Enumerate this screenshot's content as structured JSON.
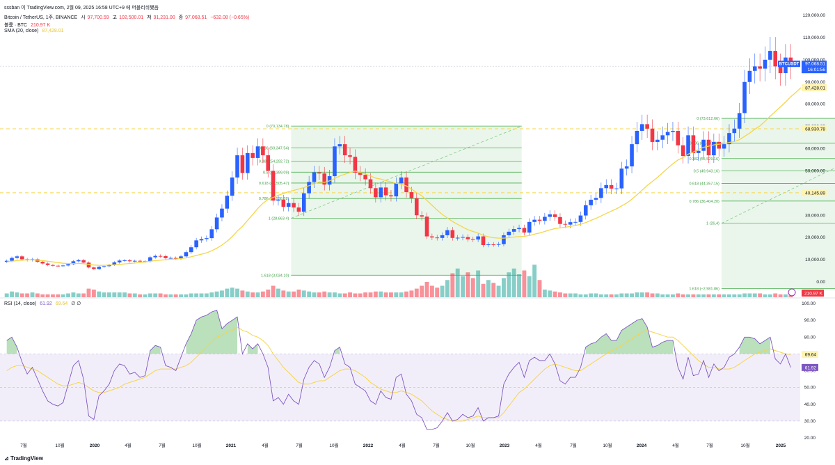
{
  "watermark": "sssban 이 TradingView.com, 2월 09, 2025 16:58 UTC+9 에 퍼블리쉬됐음",
  "symbol_line": "Bitcoin / TetherUS, 1주, BINANCE",
  "ohlc": [
    {
      "label": "시",
      "value": "97,700.59"
    },
    {
      "label": "고",
      "value": "102,500.01"
    },
    {
      "label": "저",
      "value": "91,231.00"
    },
    {
      "label": "종",
      "value": "97,068.51"
    },
    {
      "label": "",
      "value": "−632.08 (−0.65%)"
    }
  ],
  "volume_line": {
    "label": "볼륨 · BTC",
    "value": "210.97 K"
  },
  "sma_line": {
    "label": "SMA (20, close)",
    "value": "87,428.01"
  },
  "rsi_line": {
    "label": "RSI (14, close)",
    "value1": "61.92",
    "value2": "69.64",
    "value3": "∅ ∅"
  },
  "footer_logo": "TradingView",
  "colors": {
    "up": "#26a69a",
    "down": "#f23645",
    "candle_up": "#2962ff",
    "candle_down": "#f23645",
    "sma": "#f5d547",
    "fib": "#4caf50",
    "fib_zone": "#e8f5e9",
    "rsi": "#7e57c2",
    "rsi_band": "#ede7f6",
    "level": "#f5d547"
  },
  "chart_data": [
    {
      "type": "candlestick",
      "title": "Bitcoin / TetherUS, 1주, BINANCE",
      "y_axis_labels": [
        "120,000.00",
        "110,000.00",
        "100,000.00",
        "90,000.00",
        "80,000.00",
        "70,000.00",
        "60,000.00",
        "50,000.00",
        "40,000.00",
        "30,000.00",
        "20,000.00",
        "10,000.00",
        "0.00"
      ],
      "ylim": [
        0,
        120000
      ],
      "x_axis_labels": [
        "7월",
        "10월",
        "2020",
        "4월",
        "7월",
        "10월",
        "2021",
        "4월",
        "7월",
        "10월",
        "2022",
        "4월",
        "7월",
        "10월",
        "2023",
        "4월",
        "7월",
        "10월",
        "2024",
        "4월",
        "7월",
        "10월",
        "2025"
      ],
      "price_tags": [
        {
          "text": "BTCUSDT",
          "value": 97068.51,
          "sub": "97,068.51",
          "time": "16:01:56"
        },
        {
          "text": "87,428.01",
          "value": 87428.01
        },
        {
          "text": "68,930.78",
          "value": 68930.78
        },
        {
          "text": "40,145.89",
          "value": 40145.89
        }
      ],
      "horizontal_levels": [
        68930.78,
        40145.89
      ],
      "close_series": [
        9500,
        10800,
        11500,
        10200,
        9800,
        10200,
        9100,
        8300,
        7600,
        7300,
        7200,
        7400,
        8000,
        9300,
        9800,
        8700,
        6500,
        5800,
        6800,
        7100,
        7700,
        8800,
        9600,
        9700,
        9300,
        9500,
        9200,
        9300,
        11100,
        11700,
        11600,
        10700,
        10800,
        10600,
        11500,
        13400,
        15600,
        18700,
        19300,
        19700,
        23700,
        29000,
        33000,
        38800,
        47000,
        57000,
        49000,
        58000,
        55800,
        61000,
        57000,
        50000,
        36600,
        37000,
        33800,
        35500,
        33500,
        31600,
        39900,
        45000,
        49300,
        48800,
        43800,
        47600,
        61000,
        62000,
        57000,
        56300,
        49200,
        48200,
        46200,
        42200,
        38100,
        42500,
        39000,
        38500,
        44400,
        47000,
        40400,
        37700,
        30000,
        29400,
        20500,
        20000,
        19800,
        21000,
        23300,
        19800,
        19900,
        20200,
        19200,
        19100,
        20500,
        16600,
        16900,
        16800,
        17000,
        21000,
        22600,
        23800,
        24300,
        22200,
        27000,
        28000,
        27500,
        29300,
        30400,
        29200,
        26100,
        25800,
        26900,
        27000,
        29900,
        34500,
        37000,
        37800,
        42200,
        43600,
        42000,
        42100,
        51000,
        52000,
        62000,
        68000,
        71000,
        69000,
        63000,
        64000,
        66000,
        67500,
        68000,
        61500,
        56700,
        66000,
        58000,
        59000,
        64000,
        57000,
        63000,
        60000,
        62000,
        67000,
        69000,
        76000,
        90000,
        95000,
        97000,
        96000,
        100000,
        104000,
        97000,
        94000,
        101000,
        97068
      ],
      "sma20_series": [
        9000,
        9300,
        9600,
        9800,
        9900,
        9900,
        9800,
        9600,
        9300,
        9000,
        8700,
        8400,
        8300,
        8300,
        8300,
        8200,
        7900,
        7600,
        7500,
        7500,
        7600,
        7700,
        7900,
        8100,
        8300,
        8500,
        8700,
        9000,
        9300,
        9600,
        9800,
        10000,
        10200,
        10300,
        10500,
        10800,
        11300,
        11900,
        12500,
        13100,
        14000,
        15200,
        16600,
        18300,
        20400,
        22900,
        25000,
        27700,
        30300,
        33100,
        35400,
        37100,
        38000,
        39000,
        39800,
        40600,
        41200,
        41800,
        42500,
        43300,
        44100,
        45000,
        44800,
        45500,
        46500,
        47700,
        48500,
        49300,
        49900,
        49300,
        48600,
        47700,
        46700,
        46300,
        45600,
        45000,
        44400,
        44000,
        43200,
        41800,
        40200,
        38800,
        36700,
        34500,
        32300,
        30400,
        28800,
        27200,
        25900,
        24700,
        23500,
        22700,
        22000,
        21000,
        20300,
        19900,
        19700,
        19700,
        19900,
        20200,
        20400,
        20500,
        20900,
        21500,
        22000,
        22700,
        23400,
        24000,
        24300,
        24600,
        25000,
        25400,
        25900,
        26700,
        27700,
        28600,
        29700,
        30800,
        31900,
        32900,
        34200,
        35500,
        37200,
        39200,
        41300,
        43400,
        45200,
        47100,
        49100,
        51200,
        53200,
        54900,
        56000,
        57500,
        58500,
        59600,
        60600,
        61100,
        61700,
        62000,
        62300,
        62800,
        63200,
        64000,
        65500,
        67000,
        68700,
        70200,
        72300,
        74600,
        76700,
        78800,
        81000,
        83300,
        85300,
        87428
      ],
      "volume_series": [
        4,
        6,
        5,
        4,
        4,
        5,
        4,
        3,
        3,
        3,
        3,
        3,
        4,
        5,
        4,
        4,
        9,
        8,
        6,
        5,
        5,
        5,
        5,
        5,
        4,
        4,
        3,
        3,
        4,
        4,
        4,
        3,
        3,
        3,
        3,
        3,
        4,
        4,
        4,
        4,
        5,
        6,
        7,
        9,
        10,
        9,
        7,
        6,
        5,
        5,
        6,
        8,
        12,
        9,
        7,
        6,
        6,
        8,
        7,
        6,
        5,
        5,
        6,
        5,
        5,
        4,
        4,
        5,
        4,
        4,
        5,
        5,
        6,
        6,
        5,
        5,
        5,
        5,
        6,
        7,
        9,
        12,
        16,
        12,
        10,
        12,
        18,
        25,
        30,
        22,
        26,
        20,
        28,
        14,
        18,
        15,
        12,
        20,
        26,
        30,
        24,
        28,
        22,
        34,
        18,
        8,
        7,
        6,
        5,
        4,
        4,
        4,
        3,
        3,
        4,
        4,
        3,
        3,
        3,
        3,
        4,
        4,
        4,
        5,
        5,
        5,
        4,
        4,
        3,
        3,
        3,
        4,
        3,
        3,
        3,
        3,
        3,
        3,
        3,
        3,
        3,
        3,
        3,
        3,
        4,
        4,
        4,
        4,
        3,
        3,
        4,
        3,
        3,
        2
      ],
      "fib_retracements": [
        {
          "levels": [
            {
              "ratio": "0",
              "price": "70,134.78",
              "value": 70134.78
            },
            {
              "ratio": "0.236",
              "price": "60,347.54",
              "value": 60347.54
            },
            {
              "ratio": "0.382",
              "price": "54,292.72",
              "value": 54292.72
            },
            {
              "ratio": "0.5",
              "price": "49,399.09",
              "value": 49399.09
            },
            {
              "ratio": "0.618",
              "price": "44,505.47",
              "value": 44505.47
            },
            {
              "ratio": "0.786",
              "price": "37,538.28",
              "value": 37538.28
            },
            {
              "ratio": "1",
              "price": "28,663.4",
              "value": 28663.4
            },
            {
              "ratio": "1.618",
              "price": "3,034.10",
              "value": 3034.1
            }
          ]
        },
        {
          "levels": [
            {
              "ratio": "0",
              "price": "73,612.66",
              "value": 73612.66
            },
            {
              "ratio": "0.236",
              "price": "62,440.66",
              "value": 62440.66
            },
            {
              "ratio": "0.382",
              "price": "55,529.16",
              "value": 55529.16
            },
            {
              "ratio": "0.5",
              "price": "49,943.16",
              "value": 49943.16
            },
            {
              "ratio": "0.618",
              "price": "44,357.15",
              "value": 44357.15
            },
            {
              "ratio": "0.786",
              "price": "36,404.20",
              "value": 36404.2
            },
            {
              "ratio": "1",
              "price": "26,4",
              "value": 26400
            },
            {
              "ratio": "1.618",
              "price": "−2,981.86",
              "value": -2981.86
            }
          ]
        }
      ],
      "volume_tag": "210.97 K"
    },
    {
      "type": "line",
      "title": "RSI (14, close)",
      "y_axis_labels": [
        "100.00",
        "90.00",
        "80.00",
        "70.00",
        "60.00",
        "50.00",
        "40.00",
        "30.00",
        "20.00"
      ],
      "ylim": [
        20,
        100
      ],
      "band": [
        30,
        70
      ],
      "price_tags": [
        {
          "text": "69.64",
          "value": 69.64
        },
        {
          "text": "61.92",
          "value": 61.92
        }
      ],
      "rsi_series": [
        78,
        80,
        74,
        65,
        58,
        62,
        55,
        48,
        42,
        40,
        39,
        41,
        52,
        63,
        66,
        55,
        33,
        31,
        45,
        48,
        52,
        60,
        64,
        63,
        58,
        59,
        56,
        57,
        72,
        75,
        74,
        63,
        62,
        60,
        68,
        76,
        82,
        90,
        92,
        93,
        95,
        96,
        85,
        88,
        90,
        92,
        70,
        76,
        73,
        76,
        70,
        62,
        42,
        44,
        40,
        46,
        42,
        40,
        55,
        62,
        66,
        64,
        56,
        62,
        72,
        74,
        64,
        62,
        52,
        50,
        48,
        42,
        40,
        48,
        44,
        43,
        56,
        58,
        46,
        42,
        34,
        32,
        25,
        25,
        26,
        30,
        35,
        30,
        31,
        34,
        32,
        33,
        38,
        30,
        32,
        32,
        33,
        52,
        58,
        62,
        65,
        56,
        66,
        68,
        66,
        66,
        70,
        64,
        54,
        52,
        56,
        56,
        62,
        74,
        76,
        77,
        80,
        82,
        78,
        78,
        84,
        86,
        88,
        90,
        91,
        86,
        74,
        75,
        77,
        78,
        78,
        62,
        55,
        68,
        57,
        58,
        66,
        56,
        64,
        60,
        62,
        68,
        70,
        74,
        80,
        80,
        79,
        76,
        78,
        80,
        67,
        64,
        70,
        61.92
      ],
      "rsi_ma_series": [
        60,
        62,
        63,
        63,
        62,
        61,
        60,
        58,
        56,
        54,
        52,
        51,
        51,
        52,
        53,
        52,
        50,
        48,
        47,
        47,
        48,
        49,
        50,
        52,
        53,
        54,
        55,
        56,
        58,
        60,
        61,
        61,
        61,
        61,
        62,
        63,
        65,
        68,
        71,
        74,
        77,
        80,
        81,
        83,
        84,
        86,
        84,
        83,
        81,
        80,
        78,
        75,
        70,
        66,
        62,
        59,
        56,
        53,
        52,
        52,
        53,
        54,
        54,
        56,
        58,
        60,
        61,
        61,
        60,
        58,
        56,
        53,
        51,
        49,
        48,
        47,
        47,
        48,
        47,
        46,
        44,
        42,
        39,
        36,
        34,
        32,
        31,
        30,
        30,
        30,
        31,
        32,
        33,
        32,
        32,
        32,
        32,
        35,
        39,
        43,
        47,
        49,
        52,
        55,
        58,
        61,
        63,
        64,
        63,
        62,
        61,
        60,
        60,
        62,
        64,
        66,
        68,
        70,
        72,
        73,
        75,
        77,
        79,
        81,
        83,
        84,
        83,
        82,
        81,
        80,
        80,
        78,
        75,
        72,
        69,
        66,
        64,
        62,
        62,
        61,
        61,
        61,
        62,
        64,
        66,
        68,
        70,
        71,
        72,
        73,
        72,
        71,
        70,
        69.64
      ]
    }
  ]
}
